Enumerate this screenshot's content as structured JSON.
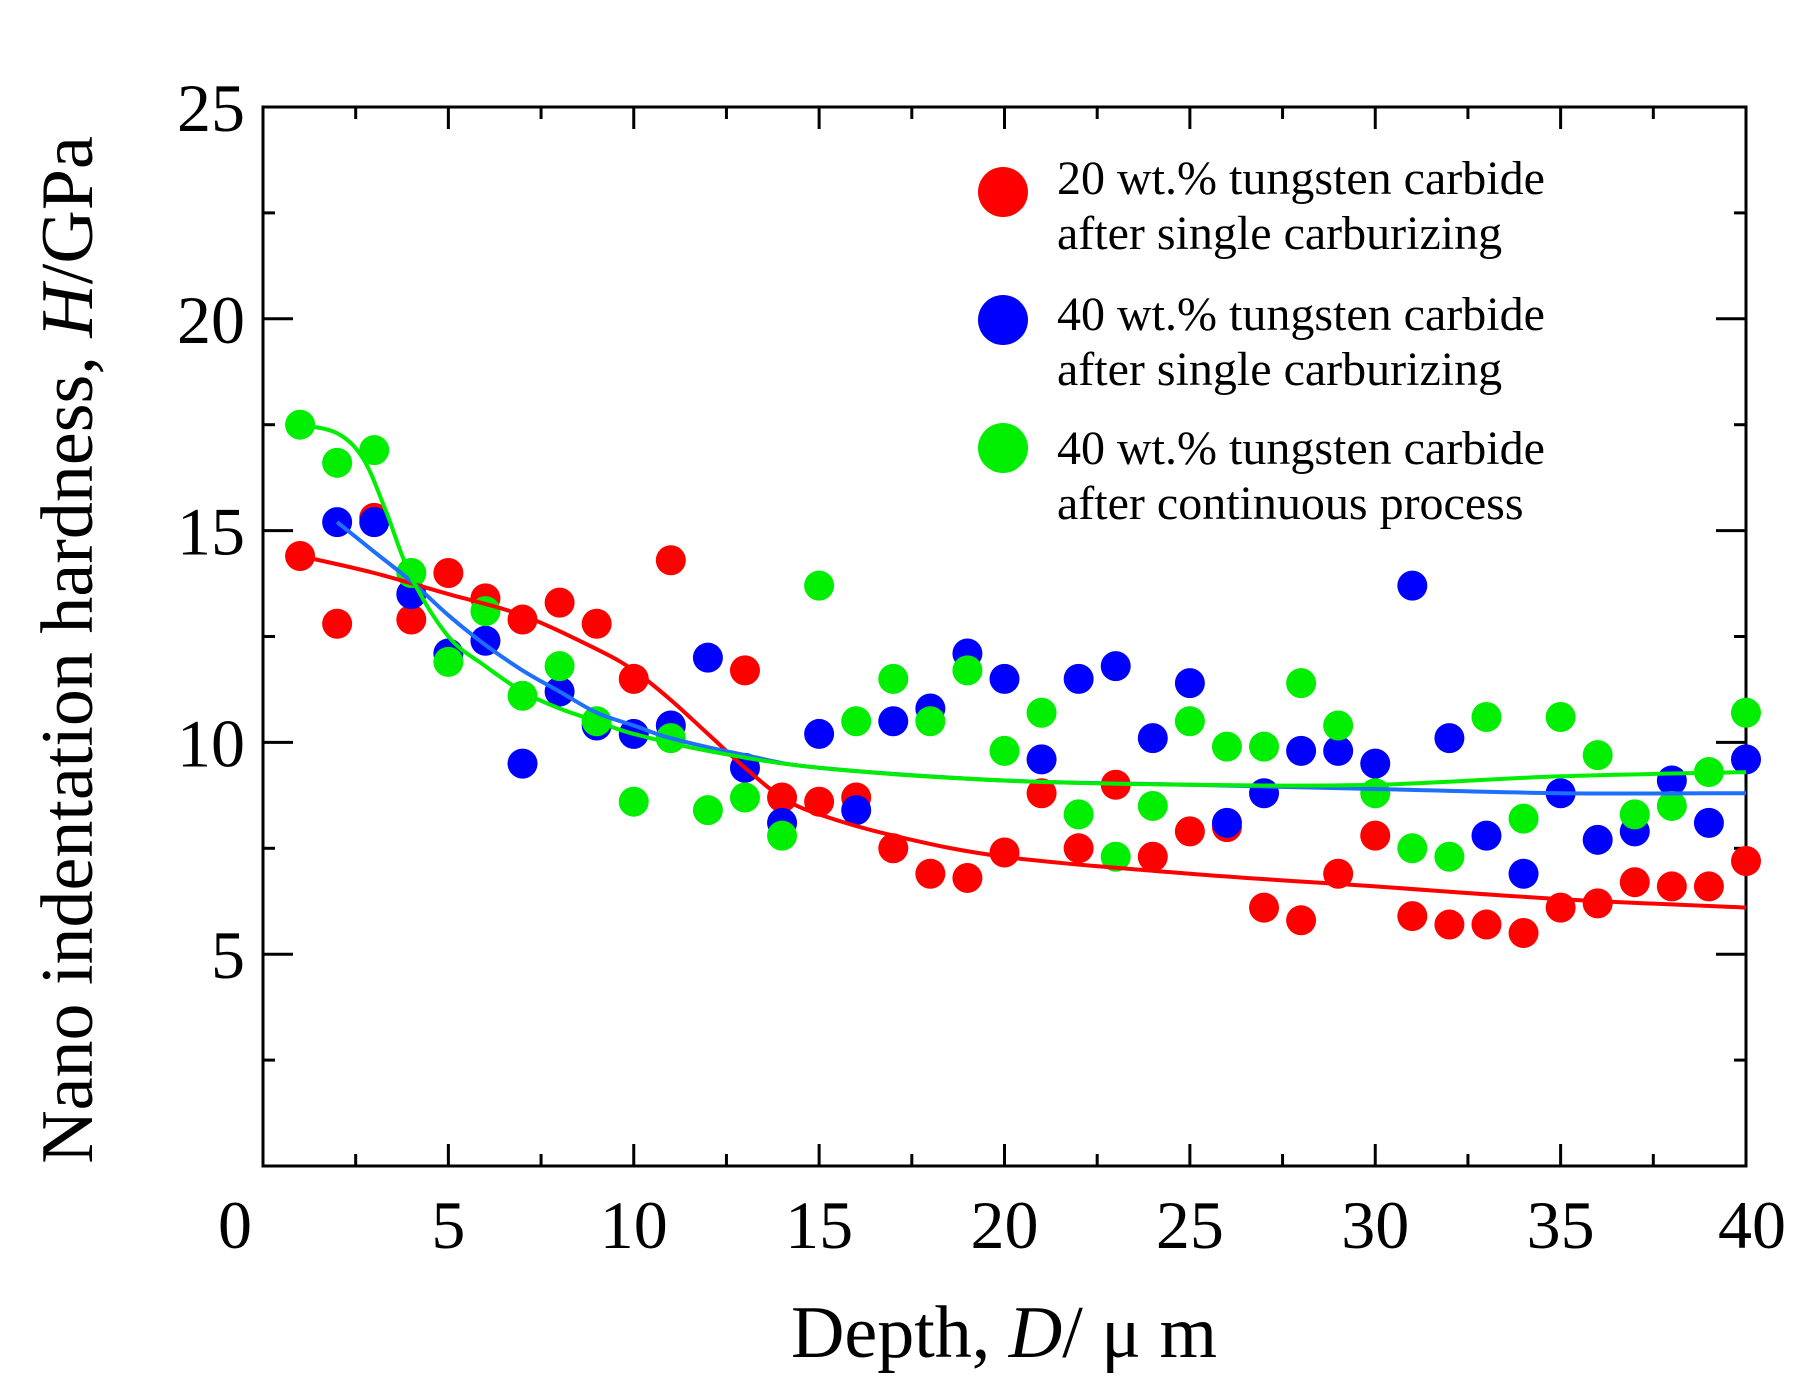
{
  "chart_data": {
    "type": "scatter",
    "xlabel": {
      "prefix": "Depth, ",
      "var": "D",
      "unit": "/ μ m"
    },
    "ylabel": {
      "prefix": "Nano indentation hardness, ",
      "var": "H",
      "unit": "/GPa"
    },
    "xlim": [
      0,
      40
    ],
    "ylim": [
      0,
      25
    ],
    "x_ticks": [
      "0",
      "5",
      "10",
      "15",
      "20",
      "25",
      "30",
      "35",
      "40"
    ],
    "y_ticks": [
      "5",
      "10",
      "15",
      "20",
      "25"
    ],
    "grid": false,
    "legend_position": "top-right",
    "series": [
      {
        "name": "20 wt.% tungsten carbide after single carburizing",
        "legend_lines": [
          "20 wt.% tungsten carbide",
          "after single carburizing"
        ],
        "color": "#ff0000",
        "points": [
          [
            1,
            14.4
          ],
          [
            2,
            12.8
          ],
          [
            3,
            15.3
          ],
          [
            4,
            12.9
          ],
          [
            5,
            14.0
          ],
          [
            6,
            13.4
          ],
          [
            7,
            12.9
          ],
          [
            8,
            13.3
          ],
          [
            9,
            12.8
          ],
          [
            10,
            11.5
          ],
          [
            11,
            14.3
          ],
          [
            13,
            11.7
          ],
          [
            14,
            8.7
          ],
          [
            15,
            8.6
          ],
          [
            16,
            8.7
          ],
          [
            17,
            7.5
          ],
          [
            18,
            6.9
          ],
          [
            19,
            6.8
          ],
          [
            20,
            7.4
          ],
          [
            21,
            8.8
          ],
          [
            22,
            7.5
          ],
          [
            23,
            9.0
          ],
          [
            24,
            7.3
          ],
          [
            25,
            7.9
          ],
          [
            26,
            8.0
          ],
          [
            27,
            6.1
          ],
          [
            28,
            5.8
          ],
          [
            29,
            6.9
          ],
          [
            30,
            7.8
          ],
          [
            31,
            5.9
          ],
          [
            32,
            5.7
          ],
          [
            33,
            5.7
          ],
          [
            34,
            5.5
          ],
          [
            35,
            6.1
          ],
          [
            36,
            6.2
          ],
          [
            37,
            6.7
          ],
          [
            38,
            6.6
          ],
          [
            39,
            6.6
          ],
          [
            40,
            7.2
          ]
        ],
        "fit": [
          [
            1,
            14.4
          ],
          [
            3,
            14.0
          ],
          [
            5,
            13.5
          ],
          [
            7,
            13.0
          ],
          [
            9,
            12.2
          ],
          [
            10,
            11.7
          ],
          [
            11,
            11.0
          ],
          [
            12,
            10.2
          ],
          [
            13,
            9.4
          ],
          [
            14,
            8.7
          ],
          [
            15,
            8.3
          ],
          [
            17,
            7.8
          ],
          [
            20,
            7.3
          ],
          [
            25,
            6.9
          ],
          [
            30,
            6.6
          ],
          [
            35,
            6.3
          ],
          [
            40,
            6.1
          ]
        ]
      },
      {
        "name": "40 wt.% tungsten carbide after single carburizing",
        "legend_lines": [
          "40 wt.% tungsten carbide",
          "after single carburizing"
        ],
        "color": "#0000ff",
        "points": [
          [
            2,
            15.2
          ],
          [
            3,
            15.2
          ],
          [
            4,
            13.5
          ],
          [
            5,
            12.1
          ],
          [
            6,
            12.4
          ],
          [
            7,
            9.5
          ],
          [
            8,
            11.2
          ],
          [
            9,
            10.4
          ],
          [
            10,
            10.2
          ],
          [
            11,
            10.4
          ],
          [
            12,
            12.0
          ],
          [
            13,
            9.4
          ],
          [
            14,
            8.1
          ],
          [
            15,
            10.2
          ],
          [
            16,
            8.4
          ],
          [
            17,
            10.5
          ],
          [
            18,
            10.8
          ],
          [
            19,
            12.1
          ],
          [
            20,
            11.5
          ],
          [
            21,
            9.6
          ],
          [
            22,
            11.5
          ],
          [
            23,
            11.8
          ],
          [
            24,
            10.1
          ],
          [
            25,
            11.4
          ],
          [
            26,
            8.1
          ],
          [
            27,
            8.8
          ],
          [
            28,
            9.8
          ],
          [
            29,
            9.8
          ],
          [
            30,
            9.5
          ],
          [
            31,
            13.7
          ],
          [
            32,
            10.1
          ],
          [
            33,
            7.8
          ],
          [
            34,
            6.9
          ],
          [
            35,
            8.8
          ],
          [
            36,
            7.7
          ],
          [
            37,
            7.9
          ],
          [
            38,
            9.1
          ],
          [
            39,
            8.1
          ],
          [
            40,
            9.6
          ]
        ],
        "fit": [
          [
            2,
            15.2
          ],
          [
            3,
            14.5
          ],
          [
            4,
            13.8
          ],
          [
            5,
            13.0
          ],
          [
            6,
            12.3
          ],
          [
            7,
            11.7
          ],
          [
            8,
            11.2
          ],
          [
            9,
            10.7
          ],
          [
            10,
            10.4
          ],
          [
            11,
            10.1
          ],
          [
            13,
            9.7
          ],
          [
            15,
            9.4
          ],
          [
            20,
            9.1
          ],
          [
            25,
            9.0
          ],
          [
            30,
            8.9
          ],
          [
            35,
            8.8
          ],
          [
            40,
            8.8
          ]
        ]
      },
      {
        "name": "40 wt.% tungsten carbide after continuous process",
        "legend_lines": [
          "40 wt.% tungsten carbide",
          "after continuous process"
        ],
        "color": "#00ee00",
        "points": [
          [
            1,
            17.5
          ],
          [
            2,
            16.6
          ],
          [
            3,
            16.9
          ],
          [
            4,
            14.0
          ],
          [
            5,
            11.9
          ],
          [
            6,
            13.1
          ],
          [
            7,
            11.1
          ],
          [
            8,
            11.8
          ],
          [
            9,
            10.5
          ],
          [
            10,
            8.6
          ],
          [
            11,
            10.1
          ],
          [
            12,
            8.4
          ],
          [
            13,
            8.7
          ],
          [
            14,
            7.8
          ],
          [
            15,
            13.7
          ],
          [
            16,
            10.5
          ],
          [
            17,
            11.5
          ],
          [
            18,
            10.5
          ],
          [
            19,
            11.7
          ],
          [
            20,
            9.8
          ],
          [
            21,
            10.7
          ],
          [
            22,
            8.3
          ],
          [
            23,
            7.3
          ],
          [
            24,
            8.5
          ],
          [
            25,
            10.5
          ],
          [
            26,
            9.9
          ],
          [
            27,
            9.9
          ],
          [
            28,
            11.4
          ],
          [
            29,
            10.4
          ],
          [
            30,
            8.8
          ],
          [
            31,
            7.5
          ],
          [
            32,
            7.3
          ],
          [
            33,
            10.6
          ],
          [
            34,
            8.2
          ],
          [
            35,
            10.6
          ],
          [
            36,
            9.7
          ],
          [
            37,
            8.3
          ],
          [
            38,
            8.5
          ],
          [
            39,
            9.3
          ],
          [
            40,
            10.7
          ]
        ],
        "fit": [
          [
            1,
            17.5
          ],
          [
            2,
            17.3
          ],
          [
            2.7,
            16.7
          ],
          [
            3.3,
            15.5
          ],
          [
            4,
            13.9
          ],
          [
            5,
            12.5
          ],
          [
            6,
            11.8
          ],
          [
            7,
            11.2
          ],
          [
            8,
            10.8
          ],
          [
            9,
            10.5
          ],
          [
            10,
            10.2
          ],
          [
            12,
            9.8
          ],
          [
            15,
            9.4
          ],
          [
            20,
            9.1
          ],
          [
            25,
            9.0
          ],
          [
            30,
            9.0
          ],
          [
            35,
            9.2
          ],
          [
            40,
            9.3
          ]
        ]
      }
    ],
    "fit_colors": [
      "#ff0000",
      "#1e6fff",
      "#00ee00"
    ]
  }
}
